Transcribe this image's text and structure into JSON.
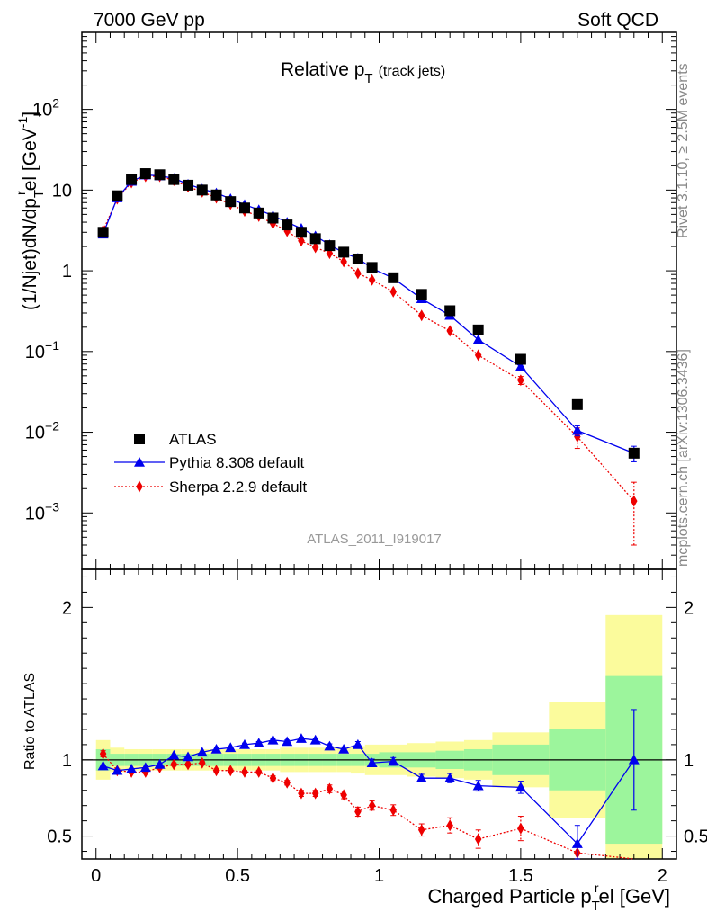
{
  "header": {
    "left": "7000 GeV pp",
    "right": "Soft QCD"
  },
  "side": {
    "rivet": "Rivet 3.1.10, ≥ 2.5M events",
    "mcplots": "mcplots.cern.ch [arXiv:1306.3436]"
  },
  "watermark": "ATLAS_2011_I919017",
  "chart_data": [
    {
      "type": "scatter",
      "title": "Relative p",
      "title_sub": "T",
      "title_note": "(track jets)",
      "ylabel": "(1/Njet)dN/dp",
      "ylabel_sub": "T",
      "ylabel_sup": "r",
      "ylabel_tail": "el [GeV",
      "ylabel_unit_sup": "-1",
      "ylabel_close": "]",
      "yscale": "log",
      "ylim": [
        0.0002,
        900
      ],
      "xlim": [
        -0.05,
        2.05
      ],
      "ytick_labels": [
        {
          "value": 0.001,
          "base": "10",
          "exp": "−3"
        },
        {
          "value": 0.01,
          "base": "10",
          "exp": "−2"
        },
        {
          "value": 0.1,
          "base": "10",
          "exp": "−1"
        },
        {
          "value": 1,
          "base": "1",
          "exp": ""
        },
        {
          "value": 10,
          "base": "10",
          "exp": ""
        },
        {
          "value": 100,
          "base": "10",
          "exp": "2"
        }
      ],
      "legend_position": "bottom-left",
      "x": [
        0.025,
        0.075,
        0.125,
        0.175,
        0.225,
        0.275,
        0.325,
        0.375,
        0.425,
        0.475,
        0.525,
        0.575,
        0.625,
        0.675,
        0.725,
        0.775,
        0.825,
        0.875,
        0.925,
        0.975,
        1.05,
        1.15,
        1.25,
        1.35,
        1.5,
        1.7,
        1.9
      ],
      "series": [
        {
          "name": "ATLAS",
          "color": "#000000",
          "values": [
            3.0,
            8.5,
            13.5,
            16.0,
            15.5,
            13.5,
            11.5,
            10.0,
            8.7,
            7.2,
            6.0,
            5.2,
            4.5,
            3.7,
            3.0,
            2.5,
            2.05,
            1.7,
            1.4,
            1.1,
            0.82,
            0.51,
            0.32,
            0.185,
            0.08,
            0.022,
            0.0055
          ]
        },
        {
          "name": "Pythia 8.308 default",
          "color": "#0000ee",
          "values": [
            2.85,
            8.0,
            12.8,
            15.4,
            15.0,
            14.0,
            11.8,
            10.3,
            9.2,
            7.8,
            6.6,
            5.7,
            4.8,
            4.0,
            3.35,
            2.7,
            2.1,
            1.67,
            1.43,
            1.07,
            0.81,
            0.45,
            0.28,
            0.14,
            0.065,
            0.0105,
            0.0055
          ],
          "errors": [
            0,
            0,
            0,
            0,
            0,
            0,
            0,
            0,
            0,
            0,
            0,
            0,
            0,
            0,
            0,
            0,
            0,
            0,
            0,
            0,
            0,
            0,
            0,
            0,
            0,
            0.0015,
            0.0012
          ]
        },
        {
          "name": "Sherpa 2.2.9 default",
          "color": "#ee0000",
          "values": [
            3.15,
            7.8,
            12.4,
            14.8,
            14.8,
            13.2,
            11.0,
            9.5,
            8.0,
            6.7,
            5.5,
            4.75,
            3.85,
            3.1,
            2.35,
            1.95,
            1.65,
            1.3,
            0.93,
            0.77,
            0.55,
            0.28,
            0.18,
            0.09,
            0.044,
            0.0088,
            0.0014
          ],
          "errors": [
            0,
            0,
            0,
            0,
            0,
            0,
            0,
            0,
            0,
            0,
            0,
            0,
            0,
            0,
            0,
            0,
            0,
            0,
            0,
            0,
            0,
            0,
            0,
            0,
            0.005,
            0.0025,
            0.001
          ]
        }
      ]
    },
    {
      "type": "scatter",
      "ylabel": "Ratio to ATLAS",
      "xlabel": "Charged Particle p",
      "xlabel_sub": "T",
      "xlabel_sup": "r",
      "xlabel_tail": "el [GeV]",
      "ylim": [
        0.35,
        2.25
      ],
      "xlim": [
        -0.05,
        2.05
      ],
      "xticks": [
        0,
        0.5,
        1,
        1.5,
        2
      ],
      "xtick_labels": [
        "0",
        "0.5",
        "1",
        "1.5",
        "2"
      ],
      "yticks": [
        0.5,
        1,
        2
      ],
      "ytick_labels": [
        "0.5",
        "1",
        "2"
      ],
      "bands": {
        "edges": [
          0.0,
          0.05,
          0.1,
          0.15,
          0.2,
          0.25,
          0.3,
          0.35,
          0.4,
          0.45,
          0.5,
          0.55,
          0.6,
          0.65,
          0.7,
          0.75,
          0.8,
          0.85,
          0.9,
          0.95,
          1.0,
          1.1,
          1.2,
          1.3,
          1.4,
          1.6,
          1.8,
          2.0
        ],
        "inner": [
          0.07,
          0.04,
          0.04,
          0.04,
          0.04,
          0.04,
          0.04,
          0.04,
          0.04,
          0.04,
          0.04,
          0.04,
          0.04,
          0.04,
          0.04,
          0.04,
          0.04,
          0.04,
          0.04,
          0.04,
          0.05,
          0.05,
          0.06,
          0.07,
          0.1,
          0.2,
          0.55
        ],
        "outer": [
          0.13,
          0.08,
          0.07,
          0.07,
          0.07,
          0.07,
          0.07,
          0.07,
          0.07,
          0.07,
          0.07,
          0.07,
          0.07,
          0.08,
          0.08,
          0.08,
          0.08,
          0.08,
          0.09,
          0.1,
          0.1,
          0.11,
          0.12,
          0.13,
          0.18,
          0.38,
          0.95
        ],
        "inner_color": "#9cf59c",
        "outer_color": "#fbfb9c"
      },
      "series": [
        {
          "name": "Pythia 8.308 default",
          "color": "#0000ee",
          "values": [
            0.96,
            0.93,
            0.94,
            0.95,
            0.97,
            1.03,
            1.02,
            1.05,
            1.07,
            1.08,
            1.1,
            1.11,
            1.13,
            1.12,
            1.14,
            1.13,
            1.09,
            1.07,
            1.1,
            0.98,
            0.99,
            0.88,
            0.88,
            0.83,
            0.82,
            0.45,
            1.0
          ],
          "errors": [
            0,
            0,
            0,
            0,
            0,
            0,
            0,
            0,
            0,
            0,
            0.01,
            0.01,
            0.01,
            0.01,
            0.01,
            0.01,
            0.015,
            0.015,
            0.02,
            0.025,
            0.025,
            0.025,
            0.03,
            0.035,
            0.04,
            0.12,
            0.33
          ]
        },
        {
          "name": "Sherpa 2.2.9 default",
          "color": "#ee0000",
          "values": [
            1.04,
            0.93,
            0.92,
            0.92,
            0.95,
            0.97,
            0.97,
            0.98,
            0.93,
            0.93,
            0.92,
            0.92,
            0.88,
            0.85,
            0.78,
            0.78,
            0.81,
            0.77,
            0.66,
            0.7,
            0.67,
            0.54,
            0.57,
            0.48,
            0.55,
            0.39,
            0.26
          ],
          "errors": [
            0.02,
            0.01,
            0.01,
            0.01,
            0.01,
            0.01,
            0.01,
            0.01,
            0.01,
            0.01,
            0.01,
            0.01,
            0.015,
            0.015,
            0.02,
            0.02,
            0.025,
            0.025,
            0.03,
            0.03,
            0.035,
            0.04,
            0.05,
            0.06,
            0.08,
            0.05,
            0.1
          ]
        }
      ]
    }
  ]
}
